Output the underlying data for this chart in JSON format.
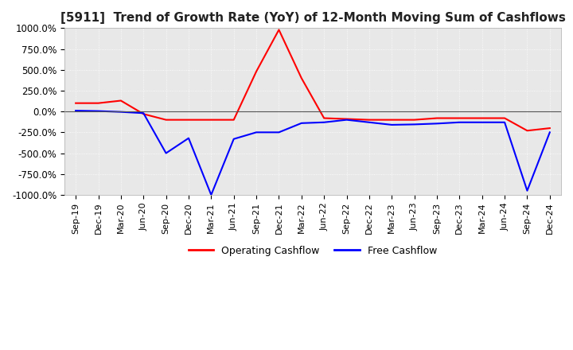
{
  "title": "[5911]  Trend of Growth Rate (YoY) of 12-Month Moving Sum of Cashflows",
  "ylim": [
    -1000,
    1000
  ],
  "yticks": [
    -1000,
    -750,
    -500,
    -250,
    0,
    250,
    500,
    750,
    1000
  ],
  "ytick_labels": [
    "-1000.0%",
    "-750.0%",
    "-500.0%",
    "-250.0%",
    "0.0%",
    "250.0%",
    "500.0%",
    "750.0%",
    "1000.0%"
  ],
  "background_color": "#ffffff",
  "plot_bg_color": "#e8e8e8",
  "grid_color": "#ffffff",
  "legend": [
    "Operating Cashflow",
    "Free Cashflow"
  ],
  "legend_colors": [
    "#ff0000",
    "#0000ff"
  ],
  "x_labels": [
    "Sep-19",
    "Dec-19",
    "Mar-20",
    "Jun-20",
    "Sep-20",
    "Dec-20",
    "Mar-21",
    "Jun-21",
    "Sep-21",
    "Dec-21",
    "Mar-22",
    "Jun-22",
    "Sep-22",
    "Dec-22",
    "Mar-23",
    "Jun-23",
    "Sep-23",
    "Dec-23",
    "Mar-24",
    "Jun-24",
    "Sep-24",
    "Dec-24"
  ],
  "operating_cashflow": [
    100,
    100,
    130,
    -30,
    -100,
    -100,
    -100,
    -100,
    480,
    980,
    400,
    -80,
    -90,
    -100,
    -100,
    -100,
    -80,
    -80,
    -80,
    -80,
    -230,
    -200
  ],
  "free_cashflow": [
    10,
    5,
    -5,
    -20,
    -500,
    -320,
    -1000,
    -330,
    -250,
    -250,
    -140,
    -130,
    -100,
    -130,
    -160,
    -155,
    -145,
    -130,
    -130,
    -130,
    -950,
    -250
  ]
}
